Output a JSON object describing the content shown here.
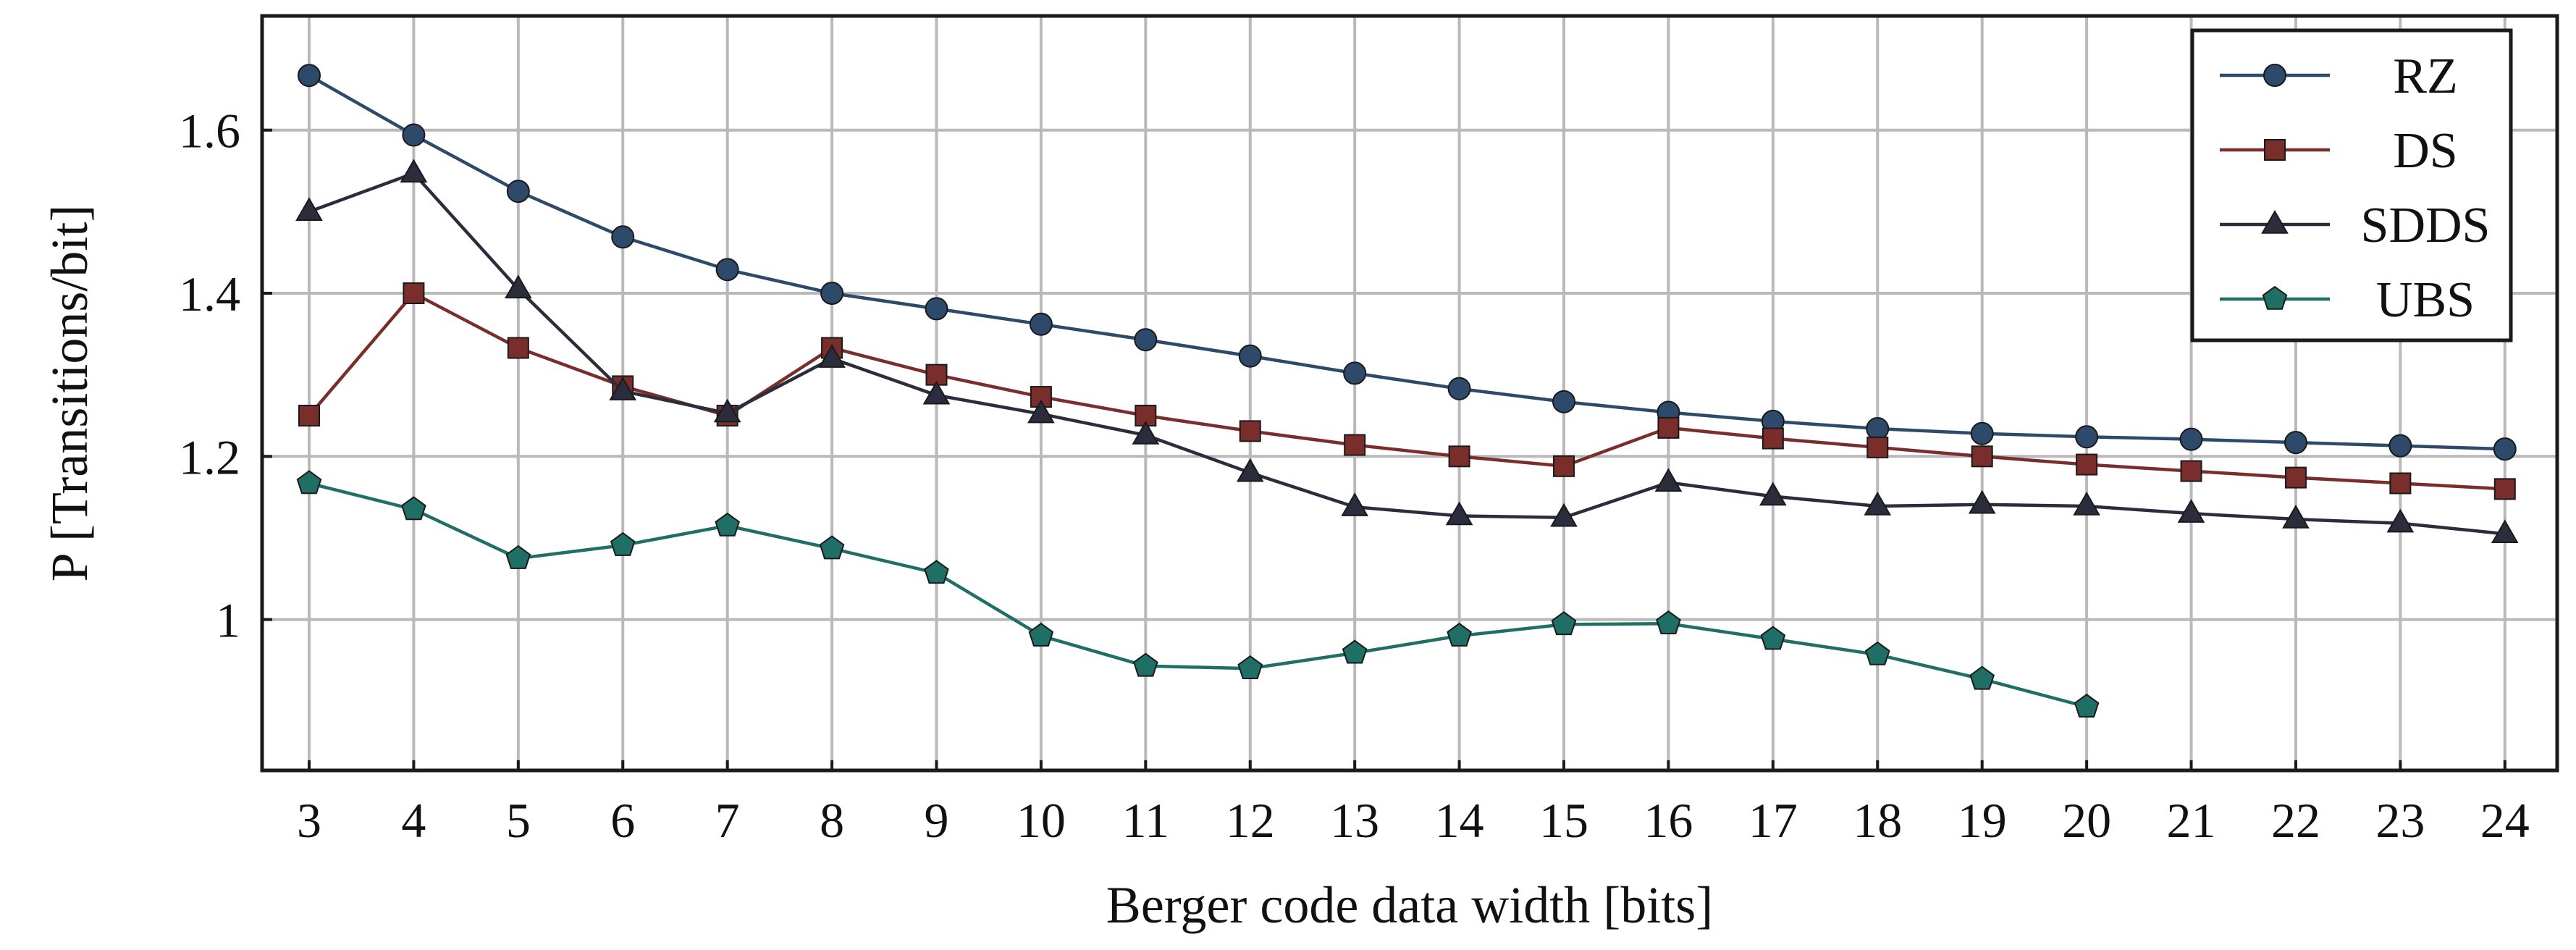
{
  "chart_data": {
    "type": "line",
    "title": "",
    "xlabel": "Berger code data width [bits]",
    "ylabel": "P [Transitions/bit]",
    "x": [
      3,
      4,
      5,
      6,
      7,
      8,
      9,
      10,
      11,
      12,
      13,
      14,
      15,
      16,
      17,
      18,
      19,
      20,
      21,
      22,
      23,
      24
    ],
    "xticks": [
      "3",
      "4",
      "5",
      "6",
      "7",
      "8",
      "9",
      "10",
      "11",
      "12",
      "13",
      "14",
      "15",
      "16",
      "17",
      "18",
      "19",
      "20",
      "21",
      "22",
      "23",
      "24"
    ],
    "yticks": [
      {
        "value": 1.0,
        "label": "1"
      },
      {
        "value": 1.2,
        "label": "1.2"
      },
      {
        "value": 1.4,
        "label": "1.4"
      },
      {
        "value": 1.6,
        "label": "1.6"
      }
    ],
    "xlim": [
      2.55,
      24.5
    ],
    "ylim": [
      0.815,
      1.74
    ],
    "grid": true,
    "legend_position": "top-right",
    "series": [
      {
        "name": "RZ",
        "color": "#2e4a6b",
        "marker": "circle",
        "values": [
          1.667,
          1.594,
          1.525,
          1.469,
          1.429,
          1.4,
          1.381,
          1.362,
          1.343,
          1.323,
          1.302,
          1.283,
          1.267,
          1.254,
          1.243,
          1.234,
          1.228,
          1.224,
          1.221,
          1.217,
          1.213,
          1.209
        ]
      },
      {
        "name": "DS",
        "color": "#7a2e2b",
        "marker": "square",
        "values": [
          1.25,
          1.4,
          1.333,
          1.286,
          1.25,
          1.333,
          1.3,
          1.273,
          1.25,
          1.231,
          1.214,
          1.2,
          1.188,
          1.235,
          1.222,
          1.211,
          1.2,
          1.19,
          1.182,
          1.174,
          1.167,
          1.16
        ]
      },
      {
        "name": "SDDS",
        "color": "#2b2d3c",
        "marker": "triangle",
        "values": [
          1.5,
          1.547,
          1.405,
          1.28,
          1.253,
          1.32,
          1.275,
          1.252,
          1.226,
          1.18,
          1.138,
          1.127,
          1.125,
          1.168,
          1.151,
          1.139,
          1.141,
          1.139,
          1.13,
          1.123,
          1.118,
          1.105
        ]
      },
      {
        "name": "UBS",
        "color": "#1f6f66",
        "marker": "pentagon",
        "values": [
          1.167,
          1.135,
          1.075,
          1.091,
          1.115,
          1.087,
          1.057,
          0.98,
          0.943,
          0.94,
          0.959,
          0.98,
          0.994,
          0.995,
          0.976,
          0.957,
          0.927,
          0.893,
          null,
          null,
          null,
          null
        ]
      }
    ]
  }
}
